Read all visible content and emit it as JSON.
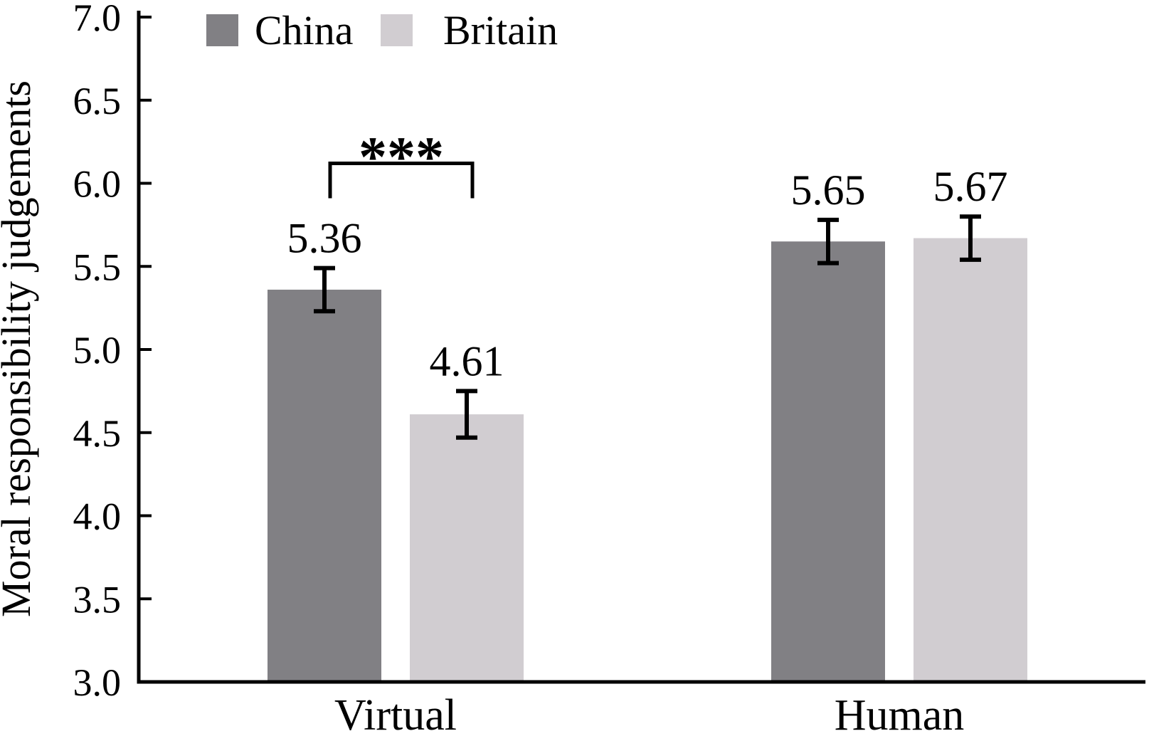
{
  "figure": {
    "background": "#ffffff",
    "text_color": "#000000",
    "axis_color": "#000000"
  },
  "chart_data": {
    "type": "bar",
    "title": "",
    "xlabel": "",
    "ylabel": "Moral responsibility judgements",
    "categories": [
      "Virtual",
      "Human"
    ],
    "series": [
      {
        "name": "China",
        "color": "#818084",
        "values": [
          5.36,
          5.65
        ],
        "errors": [
          0.13,
          0.13
        ]
      },
      {
        "name": "Britain",
        "color": "#D1CDD1",
        "values": [
          4.61,
          5.67
        ],
        "errors": [
          0.14,
          0.13
        ]
      }
    ],
    "value_labels": [
      [
        "5.36",
        "5.65"
      ],
      [
        "4.61",
        "5.67"
      ]
    ],
    "ytick_labels": [
      "3.0",
      "3.5",
      "4.0",
      "4.5",
      "5.0",
      "5.5",
      "6.0",
      "6.5",
      "7.0"
    ],
    "ylim": [
      3.0,
      7.0
    ],
    "ytick_step": 0.5,
    "grid": false,
    "error_bars": true,
    "legend_position": "top-left",
    "significance": {
      "label": "***",
      "category_index": 0,
      "series_pair": [
        "China",
        "Britain"
      ],
      "bracket_top_value": 6.12,
      "bracket_leg_bottom_value": 5.91
    }
  }
}
